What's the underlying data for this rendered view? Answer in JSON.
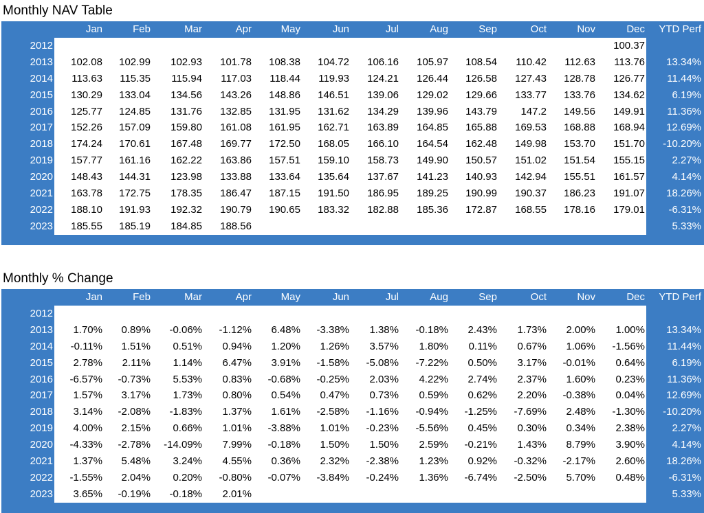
{
  "months": [
    "Jan",
    "Feb",
    "Mar",
    "Apr",
    "May",
    "Jun",
    "Jul",
    "Aug",
    "Sep",
    "Oct",
    "Nov",
    "Dec"
  ],
  "ytd_label": "YTD Perf",
  "nav": {
    "title": "Monthly NAV Table",
    "rows": [
      {
        "year": "2012",
        "values": [
          "",
          "",
          "",
          "",
          "",
          "",
          "",
          "",
          "",
          "",
          "",
          "100.37"
        ],
        "ytd": ""
      },
      {
        "year": "2013",
        "values": [
          "102.08",
          "102.99",
          "102.93",
          "101.78",
          "108.38",
          "104.72",
          "106.16",
          "105.97",
          "108.54",
          "110.42",
          "112.63",
          "113.76"
        ],
        "ytd": "13.34%"
      },
      {
        "year": "2014",
        "values": [
          "113.63",
          "115.35",
          "115.94",
          "117.03",
          "118.44",
          "119.93",
          "124.21",
          "126.44",
          "126.58",
          "127.43",
          "128.78",
          "126.77"
        ],
        "ytd": "11.44%"
      },
      {
        "year": "2015",
        "values": [
          "130.29",
          "133.04",
          "134.56",
          "143.26",
          "148.86",
          "146.51",
          "139.06",
          "129.02",
          "129.66",
          "133.77",
          "133.76",
          "134.62"
        ],
        "ytd": "6.19%"
      },
      {
        "year": "2016",
        "values": [
          "125.77",
          "124.85",
          "131.76",
          "132.85",
          "131.95",
          "131.62",
          "134.29",
          "139.96",
          "143.79",
          "147.2",
          "149.56",
          "149.91"
        ],
        "ytd": "11.36%"
      },
      {
        "year": "2017",
        "values": [
          "152.26",
          "157.09",
          "159.80",
          "161.08",
          "161.95",
          "162.71",
          "163.89",
          "164.85",
          "165.88",
          "169.53",
          "168.88",
          "168.94"
        ],
        "ytd": "12.69%"
      },
      {
        "year": "2018",
        "values": [
          "174.24",
          "170.61",
          "167.48",
          "169.77",
          "172.50",
          "168.05",
          "166.10",
          "164.54",
          "162.48",
          "149.98",
          "153.70",
          "151.70"
        ],
        "ytd": "-10.20%"
      },
      {
        "year": "2019",
        "values": [
          "157.77",
          "161.16",
          "162.22",
          "163.86",
          "157.51",
          "159.10",
          "158.73",
          "149.90",
          "150.57",
          "151.02",
          "151.54",
          "155.15"
        ],
        "ytd": "2.27%"
      },
      {
        "year": "2020",
        "values": [
          "148.43",
          "144.31",
          "123.98",
          "133.88",
          "133.64",
          "135.64",
          "137.67",
          "141.23",
          "140.93",
          "142.94",
          "155.51",
          "161.57"
        ],
        "ytd": "4.14%"
      },
      {
        "year": "2021",
        "values": [
          "163.78",
          "172.75",
          "178.35",
          "186.47",
          "187.15",
          "191.50",
          "186.95",
          "189.25",
          "190.99",
          "190.37",
          "186.23",
          "191.07"
        ],
        "ytd": "18.26%"
      },
      {
        "year": "2022",
        "values": [
          "188.10",
          "191.93",
          "192.32",
          "190.79",
          "190.65",
          "183.32",
          "182.88",
          "185.36",
          "172.87",
          "168.55",
          "178.16",
          "179.01"
        ],
        "ytd": "-6.31%"
      },
      {
        "year": "2023",
        "values": [
          "185.55",
          "185.19",
          "184.85",
          "188.56",
          "",
          "",
          "",
          "",
          "",
          "",
          "",
          ""
        ],
        "ytd": "5.33%"
      }
    ]
  },
  "pct": {
    "title": "Monthly % Change",
    "rows": [
      {
        "year": "2012",
        "values": [
          "",
          "",
          "",
          "",
          "",
          "",
          "",
          "",
          "",
          "",
          "",
          ""
        ],
        "ytd": ""
      },
      {
        "year": "2013",
        "values": [
          "1.70%",
          "0.89%",
          "-0.06%",
          "-1.12%",
          "6.48%",
          "-3.38%",
          "1.38%",
          "-0.18%",
          "2.43%",
          "1.73%",
          "2.00%",
          "1.00%"
        ],
        "ytd": "13.34%"
      },
      {
        "year": "2014",
        "values": [
          "-0.11%",
          "1.51%",
          "0.51%",
          "0.94%",
          "1.20%",
          "1.26%",
          "3.57%",
          "1.80%",
          "0.11%",
          "0.67%",
          "1.06%",
          "-1.56%"
        ],
        "ytd": "11.44%"
      },
      {
        "year": "2015",
        "values": [
          "2.78%",
          "2.11%",
          "1.14%",
          "6.47%",
          "3.91%",
          "-1.58%",
          "-5.08%",
          "-7.22%",
          "0.50%",
          "3.17%",
          "-0.01%",
          "0.64%"
        ],
        "ytd": "6.19%"
      },
      {
        "year": "2016",
        "values": [
          "-6.57%",
          "-0.73%",
          "5.53%",
          "0.83%",
          "-0.68%",
          "-0.25%",
          "2.03%",
          "4.22%",
          "2.74%",
          "2.37%",
          "1.60%",
          "0.23%"
        ],
        "ytd": "11.36%"
      },
      {
        "year": "2017",
        "values": [
          "1.57%",
          "3.17%",
          "1.73%",
          "0.80%",
          "0.54%",
          "0.47%",
          "0.73%",
          "0.59%",
          "0.62%",
          "2.20%",
          "-0.38%",
          "0.04%"
        ],
        "ytd": "12.69%"
      },
      {
        "year": "2018",
        "values": [
          "3.14%",
          "-2.08%",
          "-1.83%",
          "1.37%",
          "1.61%",
          "-2.58%",
          "-1.16%",
          "-0.94%",
          "-1.25%",
          "-7.69%",
          "2.48%",
          "-1.30%"
        ],
        "ytd": "-10.20%"
      },
      {
        "year": "2019",
        "values": [
          "4.00%",
          "2.15%",
          "0.66%",
          "1.01%",
          "-3.88%",
          "1.01%",
          "-0.23%",
          "-5.56%",
          "0.45%",
          "0.30%",
          "0.34%",
          "2.38%"
        ],
        "ytd": "2.27%"
      },
      {
        "year": "2020",
        "values": [
          "-4.33%",
          "-2.78%",
          "-14.09%",
          "7.99%",
          "-0.18%",
          "1.50%",
          "1.50%",
          "2.59%",
          "-0.21%",
          "1.43%",
          "8.79%",
          "3.90%"
        ],
        "ytd": "4.14%"
      },
      {
        "year": "2021",
        "values": [
          "1.37%",
          "5.48%",
          "3.24%",
          "4.55%",
          "0.36%",
          "2.32%",
          "-2.38%",
          "1.23%",
          "0.92%",
          "-0.32%",
          "-2.17%",
          "2.60%"
        ],
        "ytd": "18.26%"
      },
      {
        "year": "2022",
        "values": [
          "-1.55%",
          "2.04%",
          "0.20%",
          "-0.80%",
          "-0.07%",
          "-3.84%",
          "-0.24%",
          "1.36%",
          "-6.74%",
          "-2.50%",
          "5.70%",
          "0.48%"
        ],
        "ytd": "-6.31%"
      },
      {
        "year": "2023",
        "values": [
          "3.65%",
          "-0.19%",
          "-0.18%",
          "2.01%",
          "",
          "",
          "",
          "",
          "",
          "",
          "",
          ""
        ],
        "ytd": "5.33%"
      }
    ]
  }
}
